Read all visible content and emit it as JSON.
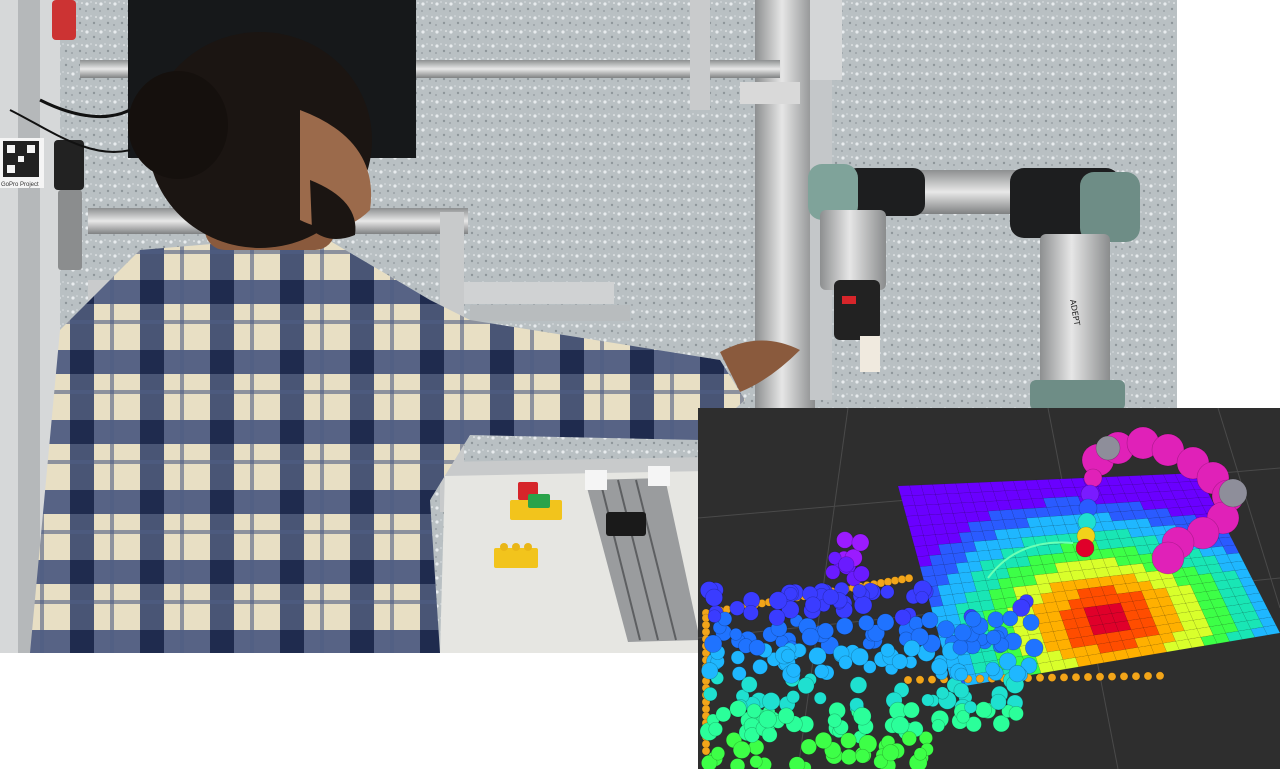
{
  "figure": {
    "photo_label": "GoPro Project",
    "robot_label": "ADEPT",
    "colors": {
      "background": "#ffffff",
      "viz_background": "#2e2e2e",
      "shirt_cream": "#e8dfc4",
      "shirt_navy": "#2d3d68",
      "robot_silver": "#c9c9c9",
      "robot_cap": "#7fa39a",
      "lego_yellow": "#f2c41c",
      "lego_red": "#d6252a",
      "lego_green": "#2aa34a",
      "robot_sphere_magenta": "#e021b8"
    },
    "heatmap_palette": [
      "#6a00ff",
      "#2a5bff",
      "#1fb7ff",
      "#19e6b5",
      "#3dff47",
      "#d9ff2b",
      "#ffb000",
      "#ff4d00",
      "#e0002a"
    ]
  }
}
